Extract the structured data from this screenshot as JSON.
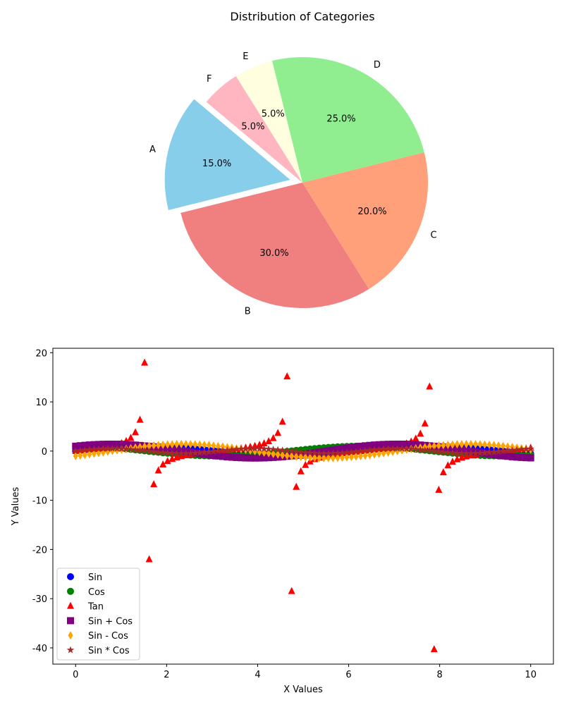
{
  "chart_data": [
    {
      "type": "pie",
      "title": "Distribution of Categories",
      "slices": [
        {
          "label": "A",
          "value": 15,
          "pct_label": "15.0%",
          "color": "#87ceeb",
          "exploded": true
        },
        {
          "label": "B",
          "value": 30,
          "pct_label": "30.0%",
          "color": "#f08080",
          "exploded": false
        },
        {
          "label": "C",
          "value": 20,
          "pct_label": "20.0%",
          "color": "#ffa07a",
          "exploded": false
        },
        {
          "label": "D",
          "value": 25,
          "pct_label": "25.0%",
          "color": "#90ee90",
          "exploded": false
        },
        {
          "label": "E",
          "value": 5,
          "pct_label": "5.0%",
          "color": "#ffffe0",
          "exploded": false
        },
        {
          "label": "F",
          "value": 5,
          "pct_label": "5.0%",
          "color": "#ffb6c1",
          "exploded": false
        }
      ],
      "start_angle_deg": 140,
      "direction": "counterclockwise"
    },
    {
      "type": "scatter",
      "title": "",
      "xlabel": "X Values",
      "ylabel": "Y Values",
      "xlim": [
        -0.5,
        10.5
      ],
      "ylim": [
        -43.3,
        20.9
      ],
      "xticks": [
        0,
        2,
        4,
        6,
        8,
        10
      ],
      "yticks": [
        -40,
        -30,
        -20,
        -10,
        0,
        10,
        20
      ],
      "grid": false,
      "legend_loc": "lower left",
      "x_domain": {
        "start": 0,
        "stop": 10,
        "count": 100
      },
      "series": [
        {
          "name": "Sin",
          "color": "#0000ff",
          "marker": "circle",
          "function": "sin"
        },
        {
          "name": "Cos",
          "color": "#008000",
          "marker": "circle",
          "function": "cos"
        },
        {
          "name": "Tan",
          "color": "#ff0000",
          "marker": "triangle",
          "function": "tan"
        },
        {
          "name": "Sin + Cos",
          "color": "#800080",
          "marker": "square",
          "function": "sin+cos"
        },
        {
          "name": "Sin - Cos",
          "color": "#ffa500",
          "marker": "diamond",
          "function": "sin-cos"
        },
        {
          "name": "Sin * Cos",
          "color": "#a52a2a",
          "marker": "star",
          "function": "sin*cos"
        }
      ]
    }
  ]
}
